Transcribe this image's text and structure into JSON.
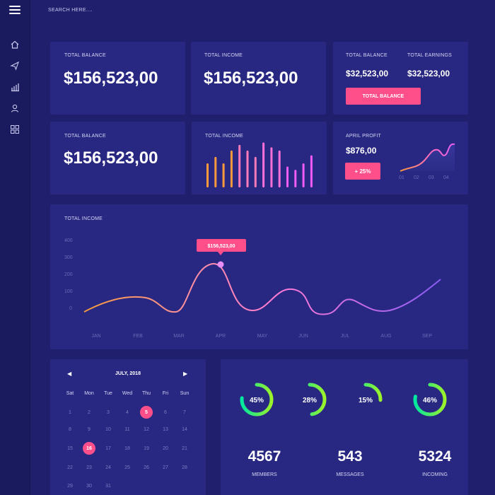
{
  "search": {
    "placeholder": "SEARCH HERE...."
  },
  "sidebar": {
    "icons": [
      "home-icon",
      "send-icon",
      "bar-chart-icon",
      "user-icon",
      "grid-icon"
    ]
  },
  "card1": {
    "label": "TOTAL BALANCE",
    "value": "$156,523,00"
  },
  "card2": {
    "label": "TOTAL INCOME",
    "value": "$156,523,00"
  },
  "card3": {
    "label_left": "TOTAL BALANCE",
    "value_left": "$32,523,00",
    "label_right": "TOTAL EARNINGS",
    "value_right": "$32,523,00",
    "button": "TOTAL BALANCE"
  },
  "card4": {
    "label": "TOTAL BALANCE",
    "value": "$156,523,00"
  },
  "card5": {
    "label": "TOTAL INCOME"
  },
  "card6": {
    "label": "APRIL PROFIT",
    "value": "$876,00",
    "badge": "+ 25%",
    "ticks": [
      "01",
      "02",
      "03",
      "04"
    ]
  },
  "income_chart": {
    "label": "TOTAL INCOME",
    "tooltip": "$156,523,00",
    "y_ticks": [
      "400",
      "300",
      "200",
      "100",
      "0"
    ],
    "x_ticks": [
      "JAN",
      "FEB",
      "MAR",
      "APR",
      "MAY",
      "JUN",
      "JUL",
      "AUG",
      "SEP"
    ]
  },
  "calendar": {
    "month": "JULY, 2018",
    "prev": "◀",
    "next": "▶",
    "dow": [
      "Sat",
      "Mon",
      "Tue",
      "Wed",
      "Thu",
      "Fri",
      "Sun"
    ],
    "days": [
      "1",
      "2",
      "3",
      "4",
      "5",
      "6",
      "7",
      "8",
      "9",
      "10",
      "11",
      "12",
      "13",
      "14",
      "15",
      "16",
      "17",
      "18",
      "19",
      "20",
      "21",
      "22",
      "23",
      "24",
      "25",
      "26",
      "27",
      "28",
      "29",
      "30",
      "31"
    ],
    "selected": [
      "5",
      "16"
    ]
  },
  "stats": {
    "gauges": [
      {
        "label": "45%",
        "value": 0.45
      },
      {
        "label": "28%",
        "value": 0.28
      },
      {
        "label": "15%",
        "value": 0.15
      },
      {
        "label": "46%",
        "value": 0.46
      }
    ],
    "members": {
      "value": "4567",
      "label": "MEMBERS"
    },
    "messages": {
      "value": "543",
      "label": "MESSAGES"
    },
    "incoming": {
      "value": "5324",
      "label": "INCOMING"
    }
  },
  "chart_data": [
    {
      "type": "bar",
      "title": "TOTAL INCOME",
      "values": [
        30,
        38,
        30,
        46,
        53,
        46,
        38,
        56,
        50,
        46,
        26,
        22,
        30,
        40
      ],
      "colors": [
        "#ff9a3c",
        "#ff9a3c",
        "#ff9a3c",
        "#ff9a3c",
        "#ff7ab8",
        "#ff7ab8",
        "#ff7ab8",
        "#ff6fd8",
        "#ff6fd8",
        "#ff6fd8",
        "#f25cf5",
        "#f25cf5",
        "#f25cf5",
        "#f25cf5"
      ]
    },
    {
      "type": "line",
      "title": "TOTAL INCOME",
      "x": [
        "JAN",
        "FEB",
        "MAR",
        "APR",
        "MAY",
        "JUN",
        "JUL",
        "AUG",
        "SEP"
      ],
      "ylim": [
        0,
        400
      ],
      "yticks": [
        0,
        100,
        200,
        300,
        400
      ],
      "grid": false
    }
  ]
}
